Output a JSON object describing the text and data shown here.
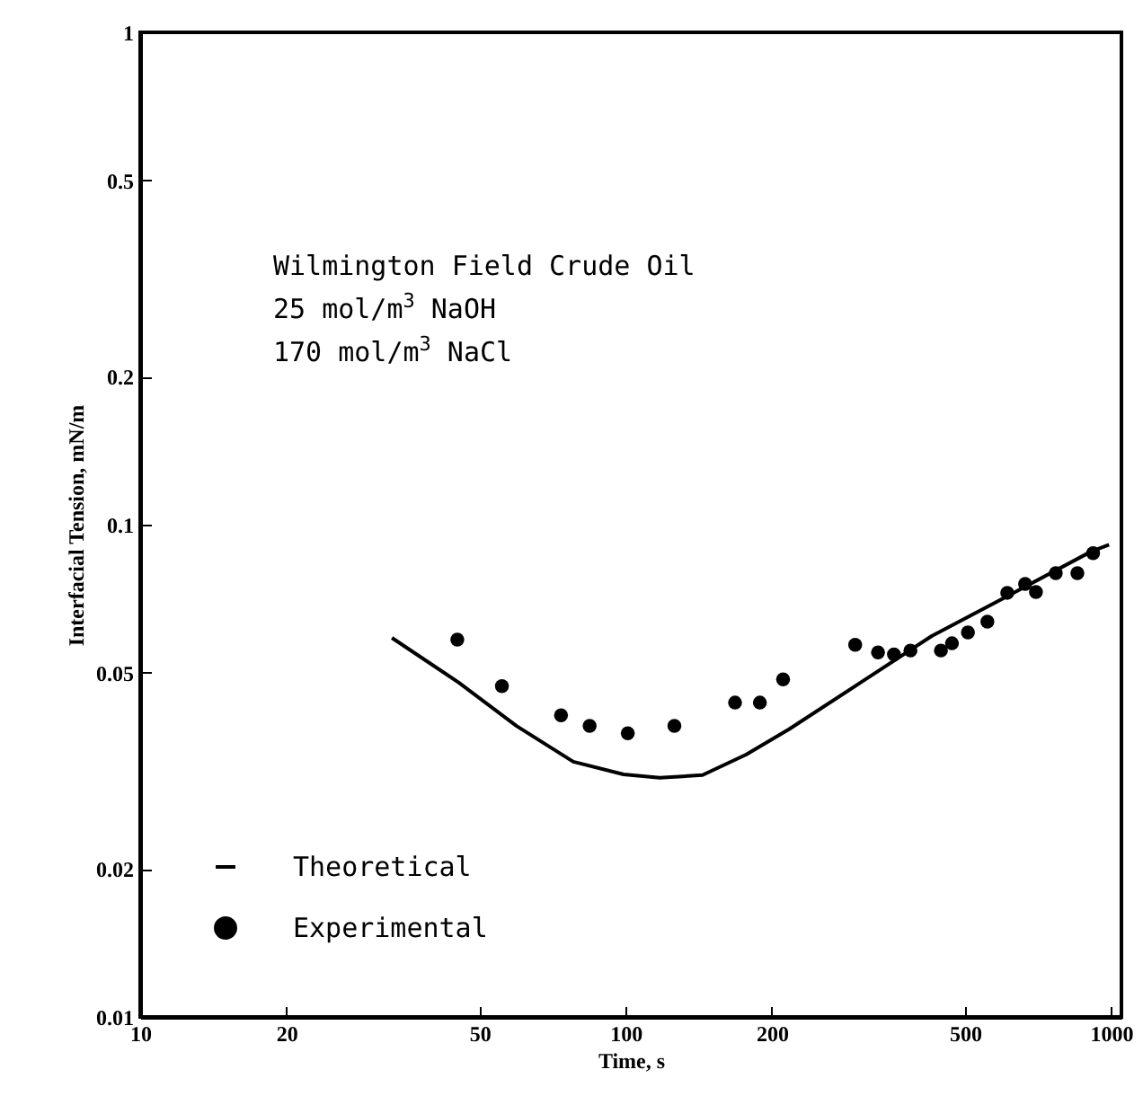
{
  "chart_data": {
    "type": "line",
    "xlabel": "Time, s",
    "ylabel": "Interfacial Tension, mN/m",
    "annotations": [
      "Wilmington Field Crude Oil",
      "25 mol/m$^{3}$ NaOH",
      "170 mol/m$^{3}$ NaCl"
    ],
    "log": "xy",
    "xlim": [
      10,
      1050
    ],
    "xticks": [
      10,
      20,
      50,
      100,
      200,
      500,
      1000
    ],
    "ylim": [
      0.01,
      1
    ],
    "yticks": [
      0.01,
      0.02,
      0.05,
      0.1,
      0.2,
      0.5,
      1
    ],
    "grid": false,
    "legend": "bottom left",
    "series": [
      {
        "name": "Theoretical",
        "color": "#000000",
        "line_style": "solid",
        "x": [
          33,
          45.4,
          59.6,
          78,
          99,
          117.5,
          144,
          177,
          217,
          304,
          427,
          601,
          910,
          990
        ],
        "values": [
          0.0589,
          0.0477,
          0.039,
          0.033,
          0.0311,
          0.0306,
          0.031,
          0.0341,
          0.0384,
          0.0477,
          0.0594,
          0.0709,
          0.0882,
          0.091
        ]
      },
      {
        "name": "Experimental",
        "type": "scatter",
        "marker": "circle",
        "color": "#000000",
        "x": [
          45,
          55.6,
          73.6,
          84.3,
          101,
          126,
          168,
          189,
          211,
          297,
          331,
          357,
          386,
          446,
          470,
          507,
          556,
          611,
          665,
          700,
          769,
          852,
          918
        ],
        "values": [
          0.0584,
          0.047,
          0.041,
          0.039,
          0.0377,
          0.039,
          0.0435,
          0.0435,
          0.0485,
          0.057,
          0.055,
          0.0545,
          0.0555,
          0.0555,
          0.0574,
          0.0604,
          0.0635,
          0.0727,
          0.0758,
          0.073,
          0.0797,
          0.0797,
          0.0875
        ]
      }
    ]
  }
}
